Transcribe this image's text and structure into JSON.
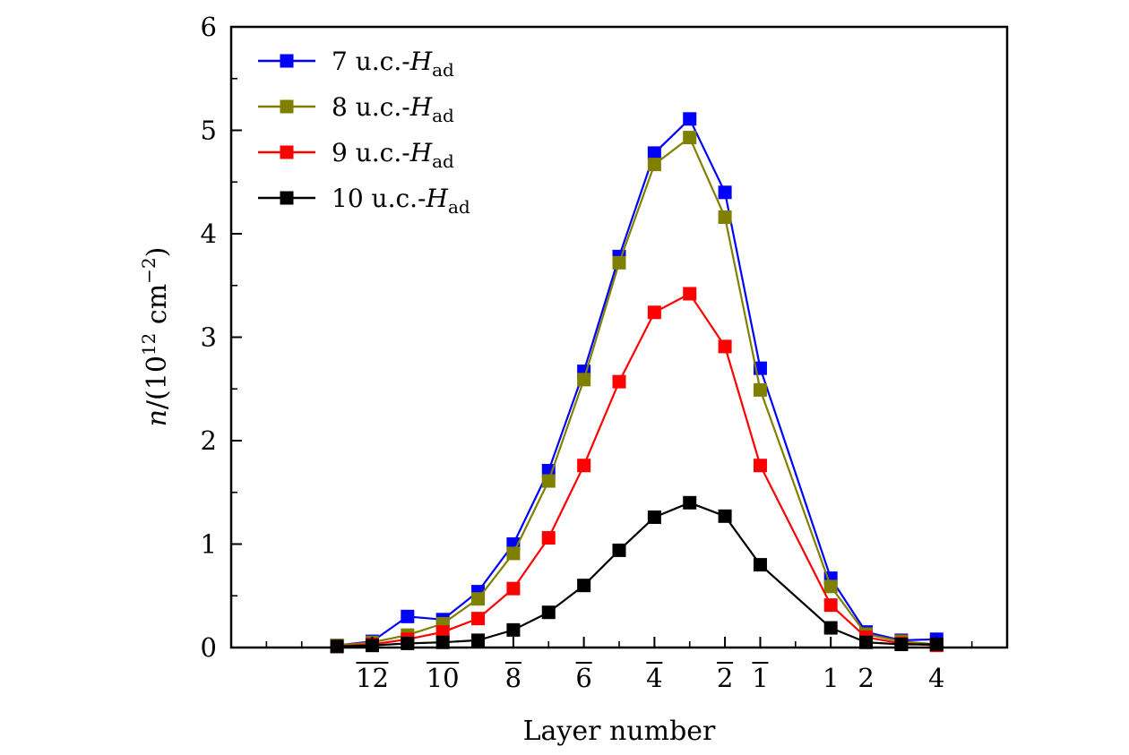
{
  "chart_data": {
    "type": "line",
    "xlabel": "Layer number",
    "ylabel": "n/(10^12 cm^-2)",
    "ylabel_parts": {
      "var": "n",
      "slash": "/(10",
      "exp": "12",
      "unit": " cm",
      "unit_exp": "−2",
      "close": ")"
    },
    "xlim": [
      -16,
      6
    ],
    "ylim": [
      0,
      6
    ],
    "yticks": [
      0,
      1,
      2,
      3,
      4,
      5,
      6
    ],
    "xtick_labels": [
      {
        "x": -12,
        "num": "12",
        "bar": true
      },
      {
        "x": -10,
        "num": "10",
        "bar": true
      },
      {
        "x": -8,
        "num": "8",
        "bar": true
      },
      {
        "x": -6,
        "num": "6",
        "bar": true
      },
      {
        "x": -4,
        "num": "4",
        "bar": true
      },
      {
        "x": -2,
        "num": "2",
        "bar": true
      },
      {
        "x": -1,
        "num": "1",
        "bar": true
      },
      {
        "x": 1,
        "num": "1",
        "bar": false
      },
      {
        "x": 2,
        "num": "2",
        "bar": false
      },
      {
        "x": 4,
        "num": "4",
        "bar": false
      }
    ],
    "x": [
      -13,
      -12,
      -11,
      -10,
      -9,
      -8,
      -7,
      -6,
      -5,
      -4,
      -3,
      -2,
      -1,
      1,
      2,
      3,
      4
    ],
    "series": [
      {
        "name": "7 u.c.-H",
        "sub": "ad",
        "color": "#0000ff",
        "values": [
          0.02,
          0.06,
          0.3,
          0.27,
          0.54,
          1.0,
          1.71,
          2.67,
          3.78,
          4.78,
          5.11,
          4.4,
          2.7,
          0.67,
          0.15,
          0.07,
          0.08
        ]
      },
      {
        "name": "8 u.c.-H",
        "sub": "ad",
        "color": "#808000",
        "values": [
          0.02,
          0.05,
          0.12,
          0.23,
          0.47,
          0.91,
          1.61,
          2.59,
          3.72,
          4.67,
          4.93,
          4.16,
          2.49,
          0.59,
          0.13,
          0.06,
          0.03
        ]
      },
      {
        "name": "9 u.c.-H",
        "sub": "ad",
        "color": "#ff0000",
        "values": [
          0.01,
          0.03,
          0.08,
          0.15,
          0.28,
          0.57,
          1.06,
          1.76,
          2.57,
          3.24,
          3.42,
          2.91,
          1.76,
          0.41,
          0.1,
          0.04,
          0.02
        ]
      },
      {
        "name": "10 u.c.-H",
        "sub": "ad",
        "color": "#000000",
        "values": [
          0.01,
          0.02,
          0.04,
          0.05,
          0.07,
          0.17,
          0.34,
          0.6,
          0.94,
          1.26,
          1.4,
          1.27,
          0.8,
          0.19,
          0.05,
          0.03,
          0.03
        ]
      }
    ],
    "legend_position": "top-left"
  }
}
